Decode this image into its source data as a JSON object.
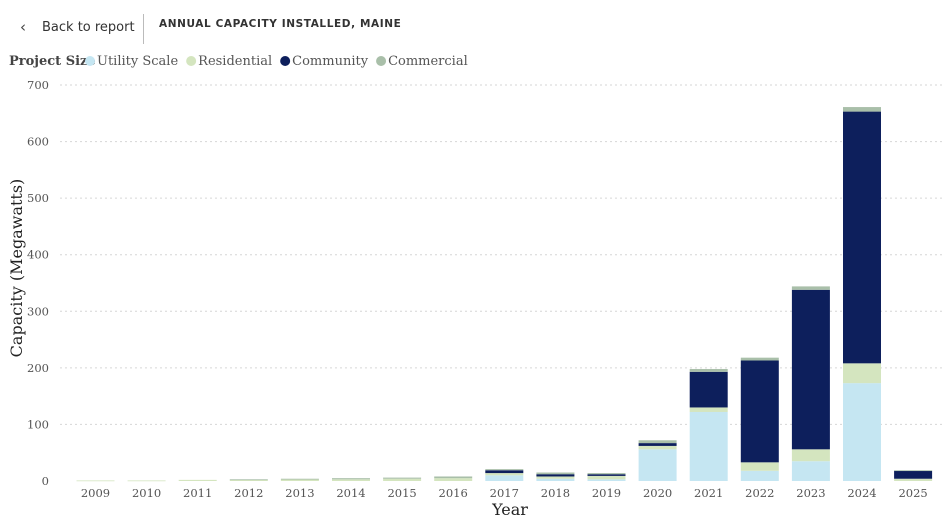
{
  "header": {
    "back_label": "Back to report",
    "title": "ANNUAL CAPACITY INSTALLED, MAINE"
  },
  "legend": {
    "title": "Project Size"
  },
  "colors": {
    "Utility Scale": "#c5e6f2",
    "Residential": "#d4e5bf",
    "Community": "#0d1f5c",
    "Commercial": "#a9bfa9"
  },
  "chart_data": {
    "type": "bar",
    "stacked": true,
    "categories": [
      "2009",
      "2010",
      "2011",
      "2012",
      "2013",
      "2014",
      "2015",
      "2016",
      "2017",
      "2018",
      "2019",
      "2020",
      "2021",
      "2022",
      "2023",
      "2024",
      "2025"
    ],
    "series": [
      {
        "name": "Utility Scale",
        "values": [
          0,
          0,
          0,
          0,
          0,
          0,
          0,
          0,
          10,
          4,
          3,
          56,
          122,
          18,
          35,
          173,
          0
        ]
      },
      {
        "name": "Residential",
        "values": [
          1,
          1,
          2,
          2,
          3,
          3,
          4,
          5,
          4,
          4,
          6,
          6,
          8,
          15,
          21,
          35,
          4
        ]
      },
      {
        "name": "Community",
        "values": [
          0,
          0,
          0,
          0,
          0,
          0,
          0,
          0,
          5,
          4,
          3,
          5,
          63,
          180,
          282,
          445,
          14
        ]
      },
      {
        "name": "Commercial",
        "values": [
          0,
          0,
          0,
          1,
          1,
          2,
          2,
          3,
          2,
          3,
          2,
          5,
          5,
          5,
          6,
          8,
          1
        ]
      }
    ],
    "xlabel": "Year",
    "ylabel": "Capacity (Megawatts)",
    "ylim": [
      0,
      700
    ],
    "yticks": [
      0,
      100,
      200,
      300,
      400,
      500,
      600,
      700
    ],
    "grid": true,
    "legend_position": "top-left"
  }
}
